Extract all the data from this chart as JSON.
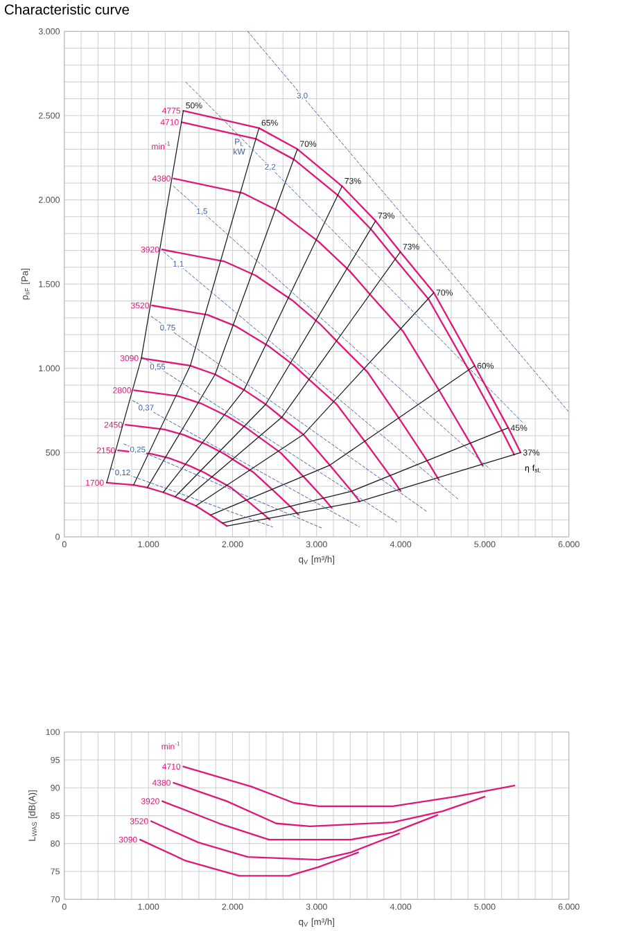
{
  "chart_data": [
    {
      "type": "line",
      "title": "Characteristic curve",
      "xlabel": "q$_{V}$ [m³/h]",
      "ylabel": "p$_{sF}$ [Pa]",
      "xlim": [
        0,
        6000
      ],
      "ylim": [
        0,
        3000
      ],
      "xticks": [
        0,
        {
          "value": 1000,
          "label": "1.000"
        },
        {
          "value": 2000,
          "label": "2.000"
        },
        {
          "value": 3000,
          "label": "3.000"
        },
        {
          "value": 4000,
          "label": "4.000"
        },
        {
          "value": 5000,
          "label": "5.000"
        },
        {
          "value": 6000,
          "label": "6.000"
        }
      ],
      "yticks": [
        0,
        500,
        {
          "value": 1000,
          "label": "1.000"
        },
        {
          "value": 1500,
          "label": "1.500"
        },
        {
          "value": 2000,
          "label": "2.000"
        },
        {
          "value": 2500,
          "label": "2.500"
        },
        {
          "value": 3000,
          "label": "3.000"
        }
      ],
      "grid": true,
      "marker": "none",
      "annotations": [
        "min$^{-1}$",
        "P$_{L}$ kW",
        "η f$_{sL}$"
      ],
      "series": [
        {
          "name": "4775",
          "color": "#e0177b",
          "line_style": "solid",
          "x": [
            1415,
            2315,
            2772,
            3303,
            3701,
            3996,
            4394,
            4880,
            5279,
            5426
          ],
          "values": [
            2529,
            2426,
            2301,
            2081,
            1875,
            1691,
            1449,
            1015,
            647,
            500
          ]
        },
        {
          "name": "4710",
          "color": "#e0177b",
          "line_style": "solid",
          "x": [
            1395,
            2283,
            2733,
            3257,
            3649,
            3940,
            4332,
            4812,
            5205,
            5350
          ],
          "values": [
            2461,
            2361,
            2239,
            2025,
            1824,
            1645,
            1410,
            988,
            630,
            487
          ]
        },
        {
          "name": "4380",
          "color": "#e0177b",
          "line_style": "solid",
          "x": [
            1298,
            2123,
            2542,
            3029,
            3394,
            3664,
            4029,
            4475,
            4841,
            4976
          ],
          "values": [
            2127,
            2040,
            1935,
            1750,
            1577,
            1422,
            1219,
            854,
            544,
            421
          ]
        },
        {
          "name": "3920",
          "color": "#e0177b",
          "line_style": "solid",
          "x": [
            1162,
            1901,
            2276,
            2712,
            3039,
            3281,
            3607,
            4006,
            4334,
            4455
          ],
          "values": [
            1705,
            1635,
            1551,
            1403,
            1264,
            1140,
            977,
            684,
            436,
            337
          ]
        },
        {
          "name": "3520",
          "color": "#e0177b",
          "line_style": "solid",
          "x": [
            1043,
            1706,
            2043,
            2434,
            2728,
            2945,
            3238,
            3597,
            3891,
            3999
          ],
          "values": [
            1373,
            1317,
            1249,
            1130,
            1018,
            918,
            787,
            551,
            351,
            272
          ]
        },
        {
          "name": "3090",
          "color": "#e0177b",
          "line_style": "solid",
          "x": [
            916,
            1498,
            1793,
            2137,
            2395,
            2585,
            2843,
            3157,
            3416,
            3511
          ],
          "values": [
            1060,
            1016,
            964,
            872,
            786,
            709,
            607,
            425,
            271,
            210
          ]
        },
        {
          "name": "2800",
          "color": "#e0177b",
          "line_style": "solid",
          "x": [
            829,
            1357,
            1624,
            1936,
            2169,
            2342,
            2575,
            2860,
            3093,
            3180
          ],
          "values": [
            870,
            835,
            792,
            716,
            645,
            582,
            498,
            349,
            223,
            172
          ]
        },
        {
          "name": "2450",
          "color": "#e0177b",
          "line_style": "solid",
          "x": [
            726,
            1188,
            1422,
            1694,
            1899,
            2050,
            2254,
            2503,
            2708,
            2783
          ],
          "values": [
            665,
            638,
            605,
            547,
            493,
            445,
            381,
            267,
            170,
            132
          ]
        },
        {
          "name": "2150",
          "color": "#e0177b",
          "line_style": "solid",
          "x": [
            637,
            1042,
            1247,
            1486,
            1665,
            1798,
            1977,
            2196,
            2376,
            2442
          ],
          "values": [
            513,
            492,
            467,
            422,
            381,
            343,
            294,
            206,
            131,
            102
          ]
        },
        {
          "name": "1700",
          "color": "#e0177b",
          "line_style": "solid",
          "x": [
            504,
            824,
            987,
            1176,
            1318,
            1423,
            1564,
            1737,
            1879,
            1932
          ],
          "values": [
            321,
            308,
            292,
            264,
            238,
            215,
            184,
            129,
            82,
            64
          ]
        },
        {
          "name": "50%",
          "color": "#1a1a1a",
          "line_style": "solid",
          "x": [
            504,
            916,
            1415
          ],
          "values": [
            321,
            1060,
            2529
          ]
        },
        {
          "name": "65%",
          "color": "#1a1a1a",
          "line_style": "solid",
          "x": [
            824,
            1498,
            2315
          ],
          "values": [
            308,
            1016,
            2426
          ]
        },
        {
          "name": "70%",
          "color": "#1a1a1a",
          "line_style": "solid",
          "x": [
            987,
            1793,
            2772
          ],
          "values": [
            292,
            964,
            2301
          ]
        },
        {
          "name": "73%",
          "color": "#1a1a1a",
          "line_style": "solid",
          "x": [
            1176,
            2137,
            3303
          ],
          "values": [
            264,
            872,
            2081
          ]
        },
        {
          "name": "73%",
          "color": "#1a1a1a",
          "line_style": "solid",
          "x": [
            1318,
            2395,
            3701
          ],
          "values": [
            238,
            786,
            1875
          ]
        },
        {
          "name": "73%",
          "color": "#1a1a1a",
          "line_style": "solid",
          "x": [
            1423,
            2585,
            3996
          ],
          "values": [
            215,
            709,
            1691
          ]
        },
        {
          "name": "70%",
          "color": "#1a1a1a",
          "line_style": "solid",
          "x": [
            1564,
            2843,
            4394
          ],
          "values": [
            184,
            607,
            1449
          ]
        },
        {
          "name": "60%",
          "color": "#1a1a1a",
          "line_style": "solid",
          "x": [
            1737,
            3157,
            4880
          ],
          "values": [
            129,
            425,
            1015
          ]
        },
        {
          "name": "45%",
          "color": "#1a1a1a",
          "line_style": "solid",
          "x": [
            1879,
            3416,
            5279
          ],
          "values": [
            82,
            271,
            647
          ]
        },
        {
          "name": "37%",
          "color": "#1a1a1a",
          "line_style": "solid",
          "x": [
            1932,
            3511,
            5426
          ],
          "values": [
            64,
            210,
            500
          ]
        },
        {
          "name": "3,0",
          "color": "#3f5fa8",
          "line_style": "dashed",
          "x": [
            2180,
            6000
          ],
          "values": [
            3000,
            740
          ]
        },
        {
          "name": "2,2",
          "color": "#3f5fa8",
          "line_style": "dashed",
          "x": [
            1445,
            5456
          ],
          "values": [
            2699,
            676
          ]
        },
        {
          "name": "1,5",
          "color": "#3f5fa8",
          "line_style": "dashed",
          "x": [
            1298,
            5058
          ],
          "values": [
            2081,
            404
          ]
        },
        {
          "name": "1,1",
          "color": "#3f5fa8",
          "line_style": "dashed",
          "x": [
            1180,
            4689
          ],
          "values": [
            1691,
            221
          ]
        },
        {
          "name": "0,75",
          "color": "#3f5fa8",
          "line_style": "dashed",
          "x": [
            1032,
            4320
          ],
          "values": [
            1309,
            147
          ]
        },
        {
          "name": "0,55",
          "color": "#3f5fa8",
          "line_style": "dashed",
          "x": [
            929,
            3952
          ],
          "values": [
            1066,
            88
          ]
        },
        {
          "name": "0,37",
          "color": "#3f5fa8",
          "line_style": "dashed",
          "x": [
            811,
            3509
          ],
          "values": [
            809,
            59
          ]
        },
        {
          "name": "0,25",
          "color": "#3f5fa8",
          "line_style": "dashed",
          "x": [
            708,
            3067
          ],
          "values": [
            551,
            51
          ]
        },
        {
          "name": "0,12",
          "color": "#3f5fa8",
          "line_style": "dashed",
          "x": [
            560,
            2477
          ],
          "values": [
            404,
            59
          ]
        }
      ]
    },
    {
      "type": "line",
      "xlabel": "q$_{V}$ [m³/h]",
      "ylabel": "L$_{WAS}$ [dB(A)]",
      "xlim": [
        0,
        6000
      ],
      "ylim": [
        70,
        100
      ],
      "xticks": [
        0,
        {
          "value": 1000,
          "label": "1.000"
        },
        {
          "value": 2000,
          "label": "2.000"
        },
        {
          "value": 3000,
          "label": "3.000"
        },
        {
          "value": 4000,
          "label": "4.000"
        },
        {
          "value": 5000,
          "label": "5.000"
        },
        {
          "value": 6000,
          "label": "6.000"
        }
      ],
      "yticks": [
        70,
        75,
        80,
        85,
        90,
        95,
        100
      ],
      "grid": true,
      "marker": "none",
      "annotations": [
        "min$^{-1}$"
      ],
      "series": [
        {
          "name": "4710",
          "color": "#e0177b",
          "line_style": "solid",
          "x": [
            1415,
            2227,
            2728,
            3023,
            3907,
            4645,
            5352
          ],
          "values": [
            93.8,
            90.2,
            87.3,
            86.7,
            86.7,
            88.4,
            90.4
          ]
        },
        {
          "name": "4380",
          "color": "#e0177b",
          "line_style": "solid",
          "x": [
            1298,
            1932,
            2521,
            2920,
            3907,
            4497,
            4999
          ],
          "values": [
            90.9,
            87.6,
            83.6,
            83.1,
            83.8,
            85.8,
            88.4
          ]
        },
        {
          "name": "3920",
          "color": "#e0177b",
          "line_style": "solid",
          "x": [
            1165,
            1843,
            2433,
            3406,
            3907,
            4438
          ],
          "values": [
            87.6,
            83.6,
            80.7,
            80.7,
            82.0,
            85.1
          ]
        },
        {
          "name": "3520",
          "color": "#e0177b",
          "line_style": "solid",
          "x": [
            1032,
            1592,
            2182,
            3023,
            3406,
            3981
          ],
          "values": [
            84.0,
            80.2,
            77.6,
            77.1,
            78.4,
            81.8
          ]
        },
        {
          "name": "3090",
          "color": "#e0177b",
          "line_style": "solid",
          "x": [
            900,
            1445,
            2079,
            2669,
            3023,
            3495
          ],
          "values": [
            80.7,
            76.9,
            74.2,
            74.2,
            75.8,
            78.4
          ]
        }
      ]
    }
  ]
}
